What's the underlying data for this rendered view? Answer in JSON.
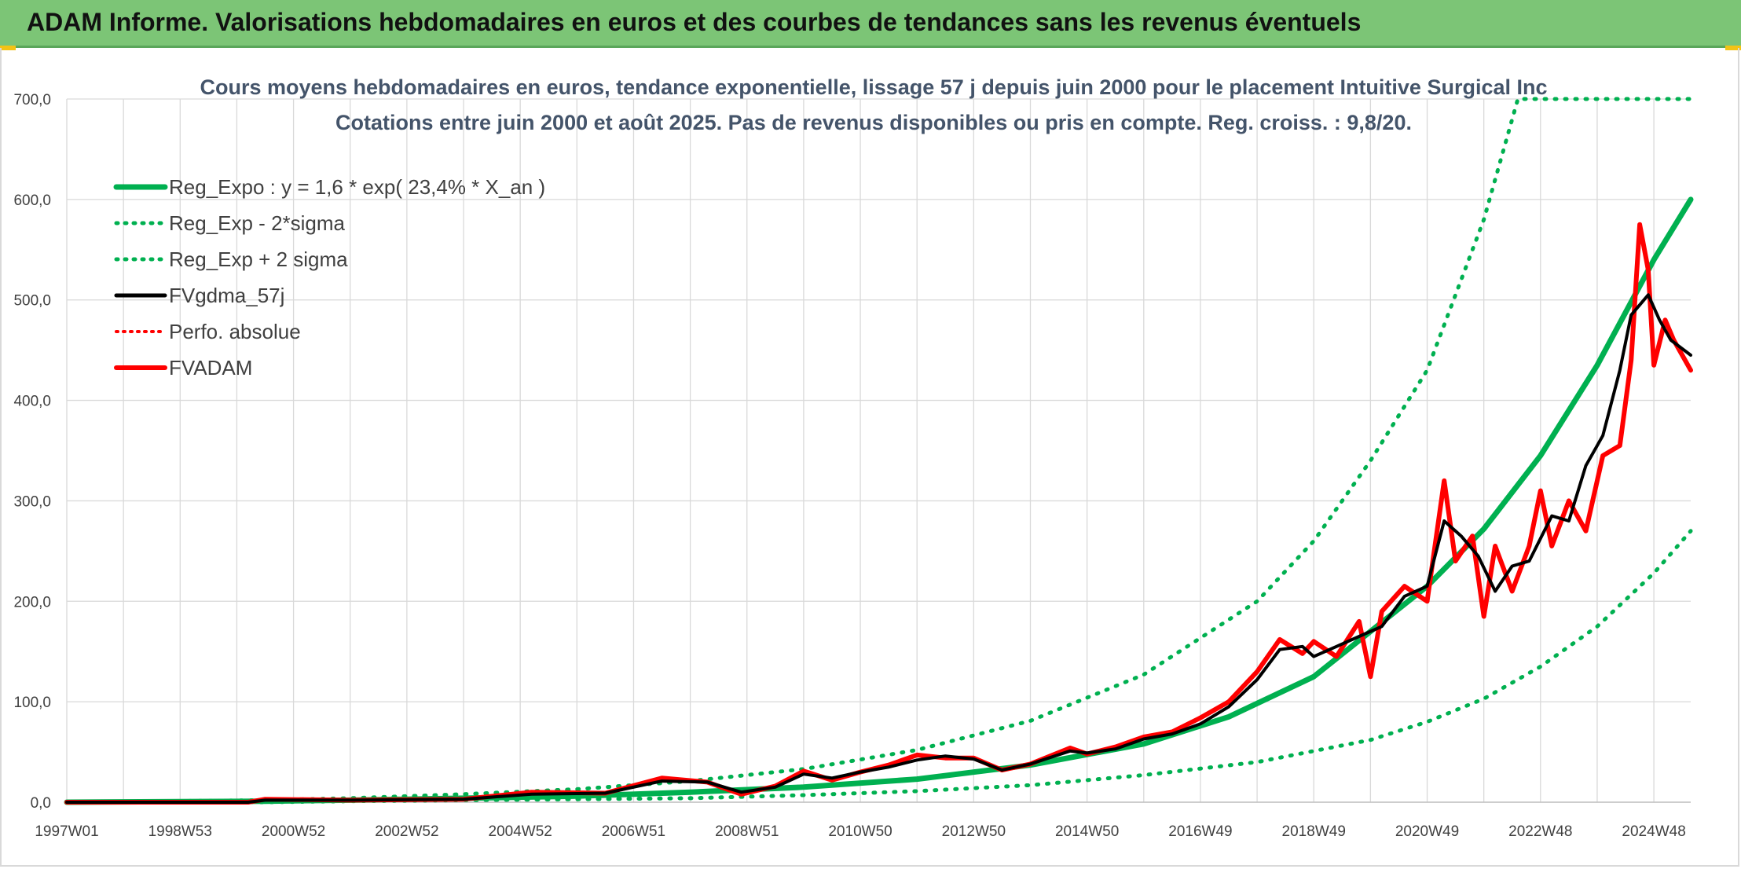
{
  "header": {
    "title": "ADAM Informe. Valorisations hebdomadaires en euros et des courbes de tendances sans les revenus éventuels"
  },
  "colors": {
    "banner": "#7cc576",
    "trend_green": "#00b050",
    "price_red": "#ff0000",
    "average_black": "#000000",
    "grid": "#d9d9d9",
    "title_text": "#44546a"
  },
  "chart_data": {
    "type": "line",
    "title": "Cours moyens hebdomadaires en euros, tendance exponentielle, lissage 57 j depuis juin 2000 pour le placement Intuitive Surgical Inc",
    "subtitle": "Cotations entre juin 2000 et août 2025. Pas de revenus disponibles ou pris en compte. Reg. croiss. : 9,8/20.",
    "xlabel": "",
    "ylabel": "",
    "x_tick_labels": [
      "1997W01",
      "1998W53",
      "2000W52",
      "2002W52",
      "2004W52",
      "2006W51",
      "2008W51",
      "2010W50",
      "2012W50",
      "2014W50",
      "2016W49",
      "2018W49",
      "2020W49",
      "2022W48",
      "2024W48"
    ],
    "y_tick_labels": [
      "0,0",
      "100,0",
      "200,0",
      "300,0",
      "400,0",
      "500,0",
      "600,0",
      "700,0"
    ],
    "ylim": [
      0,
      700
    ],
    "xlim": [
      1997.0,
      2025.65
    ],
    "grid": true,
    "legend_position": "top-left",
    "legend": [
      {
        "label": "Reg_Expo : y = 1,6 * exp( 23,4% *  X_an )",
        "style": "solid",
        "color": "#00b050"
      },
      {
        "label": "Reg_Exp - 2*sigma",
        "style": "dotted",
        "color": "#00b050"
      },
      {
        "label": "Reg_Exp + 2 sigma",
        "style": "dotted",
        "color": "#00b050"
      },
      {
        "label": "FVgdma_57j",
        "style": "solid",
        "color": "#000000"
      },
      {
        "label": "Perfo. absolue",
        "style": "dotted",
        "color": "#ff0000"
      },
      {
        "label": "FVADAM",
        "style": "solid",
        "color": "#ff0000"
      }
    ],
    "series": [
      {
        "name": "Reg_Expo : y = 1,6 * exp( 23,4% *  X_an )",
        "x": [
          1997.0,
          2000.5,
          2002,
          2004,
          2006,
          2008,
          2010,
          2012,
          2014,
          2016,
          2017.5,
          2019,
          2020,
          2021,
          2022,
          2023,
          2024,
          2025,
          2025.65
        ],
        "values": [
          0,
          1,
          2,
          4,
          6,
          10,
          15,
          23,
          37,
          58,
          85,
          125,
          170,
          215,
          272,
          345,
          435,
          540,
          600
        ]
      },
      {
        "name": "Reg_Exp - 2*sigma",
        "x": [
          1997.0,
          2000.5,
          2002,
          2004,
          2006,
          2008,
          2010,
          2012,
          2014,
          2016,
          2018,
          2020,
          2021,
          2022,
          2023,
          2024,
          2025,
          2025.65
        ],
        "values": [
          0,
          0,
          1,
          2,
          3,
          4,
          7,
          11,
          17,
          27,
          40,
          62,
          80,
          103,
          135,
          175,
          228,
          270
        ]
      },
      {
        "name": "Reg_Exp + 2 sigma",
        "x": [
          1997.0,
          2000.5,
          2002,
          2004,
          2006,
          2008,
          2010,
          2012,
          2014,
          2016,
          2018,
          2019,
          2020,
          2021,
          2022,
          2022.6,
          2025.65
        ],
        "values": [
          0,
          2,
          4,
          8,
          13,
          21,
          33,
          52,
          81,
          127,
          200,
          260,
          340,
          430,
          580,
          700,
          700
        ]
      },
      {
        "name": "FVgdma_57j",
        "x": [
          1997.0,
          2000.2,
          2000.5,
          2002,
          2004,
          2005.2,
          2006.5,
          2007.5,
          2008.3,
          2008.9,
          2009.5,
          2010.0,
          2010.5,
          2011.0,
          2011.5,
          2012.0,
          2012.5,
          2013.0,
          2013.5,
          2014.0,
          2014.7,
          2015.0,
          2015.5,
          2016.0,
          2016.5,
          2017.0,
          2017.5,
          2018.0,
          2018.4,
          2018.8,
          2019.0,
          2019.4,
          2019.8,
          2020.2,
          2020.6,
          2021.0,
          2021.3,
          2021.6,
          2021.9,
          2022.2,
          2022.5,
          2022.8,
          2023.2,
          2023.5,
          2023.8,
          2024.1,
          2024.4,
          2024.6,
          2024.9,
          2025.1,
          2025.3,
          2025.65
        ],
        "values": [
          0,
          0,
          2,
          2,
          3,
          8,
          9,
          21,
          20,
          10,
          15,
          28,
          24,
          30,
          35,
          42,
          46,
          43,
          32,
          38,
          51,
          49,
          53,
          63,
          68,
          78,
          95,
          122,
          152,
          155,
          145,
          155,
          165,
          175,
          205,
          215,
          280,
          265,
          245,
          210,
          235,
          240,
          285,
          280,
          335,
          365,
          430,
          485,
          505,
          480,
          460,
          445
        ]
      },
      {
        "name": "FVADAM",
        "x": [
          1997.0,
          2000.2,
          2000.5,
          2002,
          2004,
          2005.2,
          2006.5,
          2007.5,
          2008.3,
          2008.9,
          2009.5,
          2010.0,
          2010.5,
          2011.0,
          2011.5,
          2012.0,
          2012.5,
          2013.0,
          2013.5,
          2014.0,
          2014.7,
          2015.0,
          2015.5,
          2016.0,
          2016.5,
          2017.0,
          2017.5,
          2018.0,
          2018.4,
          2018.8,
          2019.0,
          2019.4,
          2019.8,
          2020.0,
          2020.2,
          2020.6,
          2021.0,
          2021.3,
          2021.5,
          2021.8,
          2022.0,
          2022.2,
          2022.5,
          2022.8,
          2023.0,
          2023.2,
          2023.5,
          2023.8,
          2024.1,
          2024.4,
          2024.6,
          2024.75,
          2024.9,
          2025.0,
          2025.2,
          2025.35,
          2025.5,
          2025.65
        ],
        "values": [
          0,
          0,
          3,
          2,
          3,
          10,
          9,
          24,
          20,
          8,
          16,
          31,
          22,
          30,
          37,
          47,
          44,
          44,
          32,
          38,
          54,
          48,
          55,
          65,
          70,
          84,
          100,
          130,
          162,
          148,
          160,
          145,
          180,
          125,
          190,
          215,
          200,
          320,
          240,
          265,
          185,
          255,
          210,
          255,
          310,
          255,
          300,
          270,
          345,
          355,
          440,
          575,
          530,
          435,
          480,
          460,
          445,
          430
        ]
      }
    ]
  }
}
